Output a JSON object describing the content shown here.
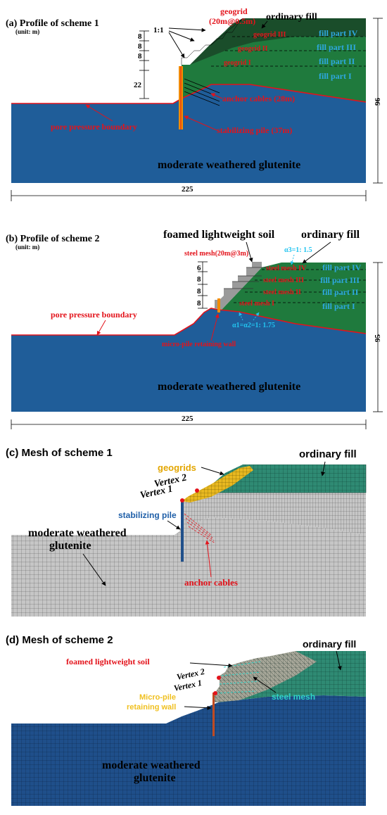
{
  "panel_a": {
    "title": "(a) Profile of scheme 1",
    "unit": "(unit: m)",
    "slope_ratio": "1:1",
    "dims_left": [
      "8",
      "8",
      "8",
      "22"
    ],
    "height": "96",
    "width": "225",
    "labels": {
      "geogrid": "geogrid",
      "geogrid_spec": "(20m@0.5m)",
      "ordinary_fill": "ordinary fill",
      "geogrid_3": "geogrid III",
      "geogrid_2": "geogrid II",
      "geogrid_1": "geogrid I",
      "fill_4": "fill part IV",
      "fill_3": "fill part III",
      "fill_2": "fill part II",
      "fill_1": "fill part I",
      "anchor": "anchor cables (28m)",
      "pore": "pore pressure boundary",
      "pile": "stabilizing pile (37m)",
      "rock": "moderate weathered glutenite"
    }
  },
  "panel_b": {
    "title": "(b) Profile of scheme 2",
    "unit": "(unit: m)",
    "dims_left": [
      "6",
      "8",
      "8",
      "8"
    ],
    "height": "95",
    "width": "225",
    "labels": {
      "foamed": "foamed lightweight soil",
      "ordinary_fill": "ordinary fill",
      "steel_mesh_spec": "steel mesh(20m@3m)",
      "alpha3": "α3=1: 1.5",
      "mesh_4": "steel mesh IV",
      "mesh_3": "steel mesh III",
      "mesh_2": "steel mesh II",
      "mesh_1": "steel mesh I",
      "fill_4": "fill part IV",
      "fill_3": "fill part III",
      "fill_2": "fill part II",
      "fill_1": "fill part I",
      "alpha12": "α1=α2=1: 1.75",
      "pore": "pore pressure boundary",
      "wall": "micro-pile retaining wall",
      "rock": "moderate weathered glutenite"
    }
  },
  "panel_c": {
    "title": "(c) Mesh of scheme 1",
    "labels": {
      "geogrids": "geogrids",
      "ordinary_fill": "ordinary fill",
      "vertex2": "Vertex 2",
      "vertex1": "Vertex 1",
      "pile": "stabilizing pile",
      "rock_1": "moderate weathered",
      "rock_2": "glutenite",
      "anchor": "anchor cables"
    }
  },
  "panel_d": {
    "title": "(d) Mesh of scheme 2",
    "labels": {
      "ordinary_fill": "ordinary fill",
      "foamed": "foamed lightweight soil",
      "vertex2": "Vertex 2",
      "vertex1": "Vertex 1",
      "wall_1": "Micro-pile",
      "wall_2": "retaining wall",
      "steel_mesh": "steel mesh",
      "rock_1": "moderate weathered",
      "rock_2": "glutenite"
    }
  },
  "colors": {
    "rock": "#1f5d99",
    "fill": "#1f7a3d",
    "fill_top": "#1a4d2a",
    "foamed": "#9a9a9a",
    "pile": "#f28c00",
    "red": "#e3131b",
    "mesh_grey": "#b8b8b8",
    "mesh_teal": "#2a7a6a"
  }
}
